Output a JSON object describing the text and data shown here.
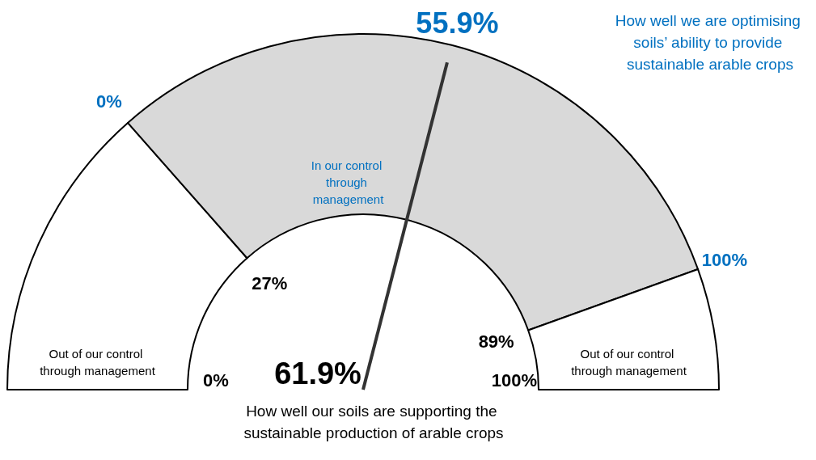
{
  "chart_data": {
    "type": "donut",
    "title": "How well our soils are supporting the sustainable production of arable crops",
    "subtitle": "How well we are optimising soils’ ability to provide sustainable arable crops",
    "categories": [
      "Out of our control through management",
      "In our control through management",
      "Out of our control through management"
    ],
    "values": [
      27,
      62,
      11
    ],
    "colors": [
      "#ffffff",
      "#d9d9d9",
      "#ffffff"
    ],
    "needle": "In our control through management",
    "annotations": [
      "0%",
      "27%",
      "89%",
      "100%",
      "0%",
      "100%",
      "55.9%",
      {
        "text": "61.9%"
      }
    ]
  }
}
